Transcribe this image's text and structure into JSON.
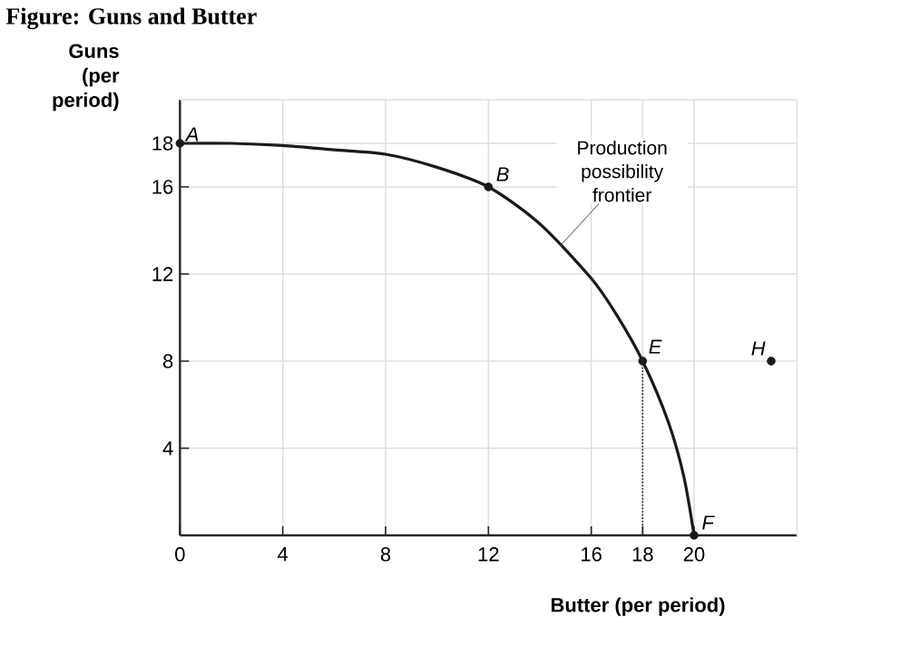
{
  "chart_data": {
    "type": "line",
    "title": "Figure: Guns and Butter",
    "xlabel": "Butter (per period)",
    "ylabel": "Guns (per period)",
    "xlim": [
      0,
      24
    ],
    "ylim": [
      0,
      20
    ],
    "xticks": [
      {
        "value": 0,
        "label": "0"
      },
      4,
      8,
      12,
      16,
      18,
      20
    ],
    "yticks": [
      {
        "value": 0,
        "label": null
      },
      4,
      8,
      12,
      16,
      18
    ],
    "grid": true,
    "marker": "none",
    "series": [
      {
        "color": "#1a1a1a",
        "line_style": "solid",
        "x": [
          0,
          2,
          4,
          6,
          8,
          10,
          12,
          14,
          16,
          17,
          18,
          19,
          19.6,
          20
        ],
        "values": [
          18,
          18,
          17.9,
          17.7,
          17.5,
          16.9,
          16,
          14.3,
          11.8,
          10.1,
          8,
          5.2,
          2.7,
          0
        ]
      },
      {
        "color": "#1a1a1a",
        "line_style": "dotted",
        "x": [
          18,
          18
        ],
        "values": [
          0,
          8
        ]
      },
      {
        "type": "scatter",
        "color": "#1a1a1a",
        "marker": "circle",
        "x": [
          0,
          12,
          18,
          20,
          23
        ],
        "values": [
          18,
          16,
          8,
          0,
          8
        ]
      }
    ],
    "annotations": [
      {
        "text": "A",
        "x": 0,
        "y": 18
      },
      {
        "text": "B",
        "x": 12,
        "y": 16
      },
      {
        "text": "E",
        "x": 18,
        "y": 8
      },
      {
        "text": "F",
        "x": 20,
        "y": 0
      },
      {
        "text": "H",
        "x": 23,
        "y": 8
      },
      {
        "text": "Production possibility frontier",
        "x": 14.8,
        "y": 13.3
      }
    ]
  }
}
